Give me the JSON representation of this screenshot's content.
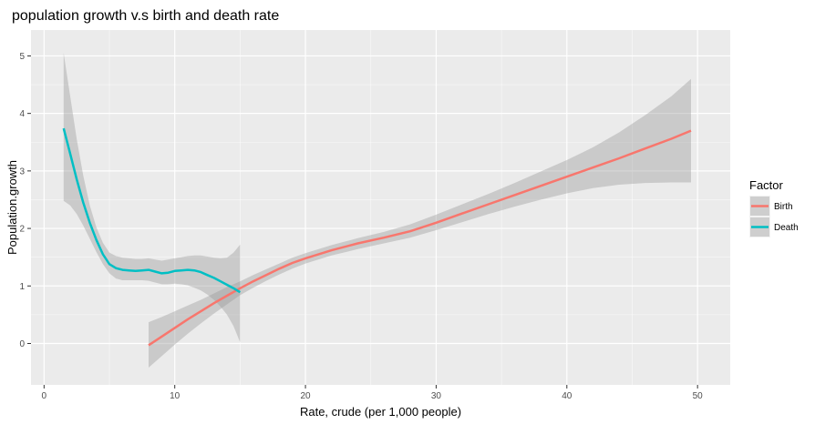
{
  "chart_data": {
    "type": "line",
    "title": "population growth v.s birth and death rate",
    "xlabel": "Rate, crude (per 1,000 people)",
    "ylabel": "Population.growth",
    "xlim": [
      -1,
      52.5
    ],
    "ylim": [
      -0.72,
      5.45
    ],
    "x_ticks": [
      0,
      10,
      20,
      30,
      40,
      50
    ],
    "y_ticks": [
      0,
      1,
      2,
      3,
      4,
      5
    ],
    "grid": true,
    "legend_position": "right",
    "legend_title": "Factor",
    "series": [
      {
        "name": "Birth",
        "color": "#F8766D",
        "x": [
          8.0,
          9.0,
          10.0,
          11.0,
          12.0,
          13.0,
          14.0,
          15.0,
          16.0,
          17.0,
          18.0,
          19.0,
          20.0,
          22.0,
          24.0,
          26.0,
          28.0,
          30.0,
          32.0,
          34.0,
          36.0,
          38.0,
          40.0,
          42.0,
          44.0,
          46.0,
          48.0,
          49.5
        ],
        "y": [
          -0.03,
          0.12,
          0.27,
          0.42,
          0.56,
          0.7,
          0.83,
          0.96,
          1.08,
          1.19,
          1.3,
          1.4,
          1.48,
          1.62,
          1.74,
          1.84,
          1.95,
          2.1,
          2.26,
          2.42,
          2.58,
          2.74,
          2.9,
          3.06,
          3.22,
          3.39,
          3.56,
          3.7
        ],
        "ci_lower": [
          -0.42,
          -0.22,
          -0.02,
          0.17,
          0.35,
          0.52,
          0.68,
          0.84,
          0.97,
          1.09,
          1.2,
          1.3,
          1.39,
          1.53,
          1.64,
          1.74,
          1.84,
          1.97,
          2.11,
          2.25,
          2.38,
          2.5,
          2.61,
          2.7,
          2.76,
          2.79,
          2.8,
          2.8
        ],
        "ci_upper": [
          0.37,
          0.46,
          0.56,
          0.66,
          0.76,
          0.87,
          0.98,
          1.08,
          1.19,
          1.29,
          1.39,
          1.49,
          1.57,
          1.71,
          1.83,
          1.94,
          2.07,
          2.24,
          2.42,
          2.6,
          2.79,
          2.99,
          3.19,
          3.41,
          3.67,
          3.97,
          4.3,
          4.6
        ]
      },
      {
        "name": "Death",
        "color": "#00BFC4",
        "x": [
          1.5,
          2.0,
          2.5,
          3.0,
          3.5,
          4.0,
          4.5,
          5.0,
          5.5,
          6.0,
          6.5,
          7.0,
          7.5,
          8.0,
          8.5,
          9.0,
          9.5,
          10.0,
          10.5,
          11.0,
          11.5,
          12.0,
          12.5,
          13.0,
          13.5,
          14.0,
          14.5,
          15.0
        ],
        "y": [
          3.74,
          3.3,
          2.85,
          2.45,
          2.1,
          1.8,
          1.55,
          1.38,
          1.31,
          1.28,
          1.27,
          1.26,
          1.27,
          1.28,
          1.25,
          1.22,
          1.23,
          1.26,
          1.27,
          1.28,
          1.27,
          1.24,
          1.19,
          1.14,
          1.08,
          1.02,
          0.96,
          0.89
        ],
        "ci_lower": [
          2.48,
          2.4,
          2.25,
          2.05,
          1.82,
          1.59,
          1.38,
          1.22,
          1.13,
          1.1,
          1.1,
          1.1,
          1.1,
          1.09,
          1.06,
          1.03,
          1.03,
          1.04,
          1.03,
          1.01,
          0.97,
          0.92,
          0.85,
          0.76,
          0.64,
          0.5,
          0.3,
          0.02
        ],
        "ci_upper": [
          5.05,
          4.3,
          3.55,
          2.92,
          2.4,
          2.02,
          1.75,
          1.58,
          1.52,
          1.49,
          1.48,
          1.47,
          1.47,
          1.48,
          1.46,
          1.44,
          1.46,
          1.48,
          1.5,
          1.52,
          1.53,
          1.53,
          1.51,
          1.49,
          1.48,
          1.49,
          1.58,
          1.72
        ]
      }
    ]
  },
  "style": {
    "panel_bg": "#EBEBEB",
    "grid_major": "#FFFFFF",
    "ribbon": "#999999"
  }
}
